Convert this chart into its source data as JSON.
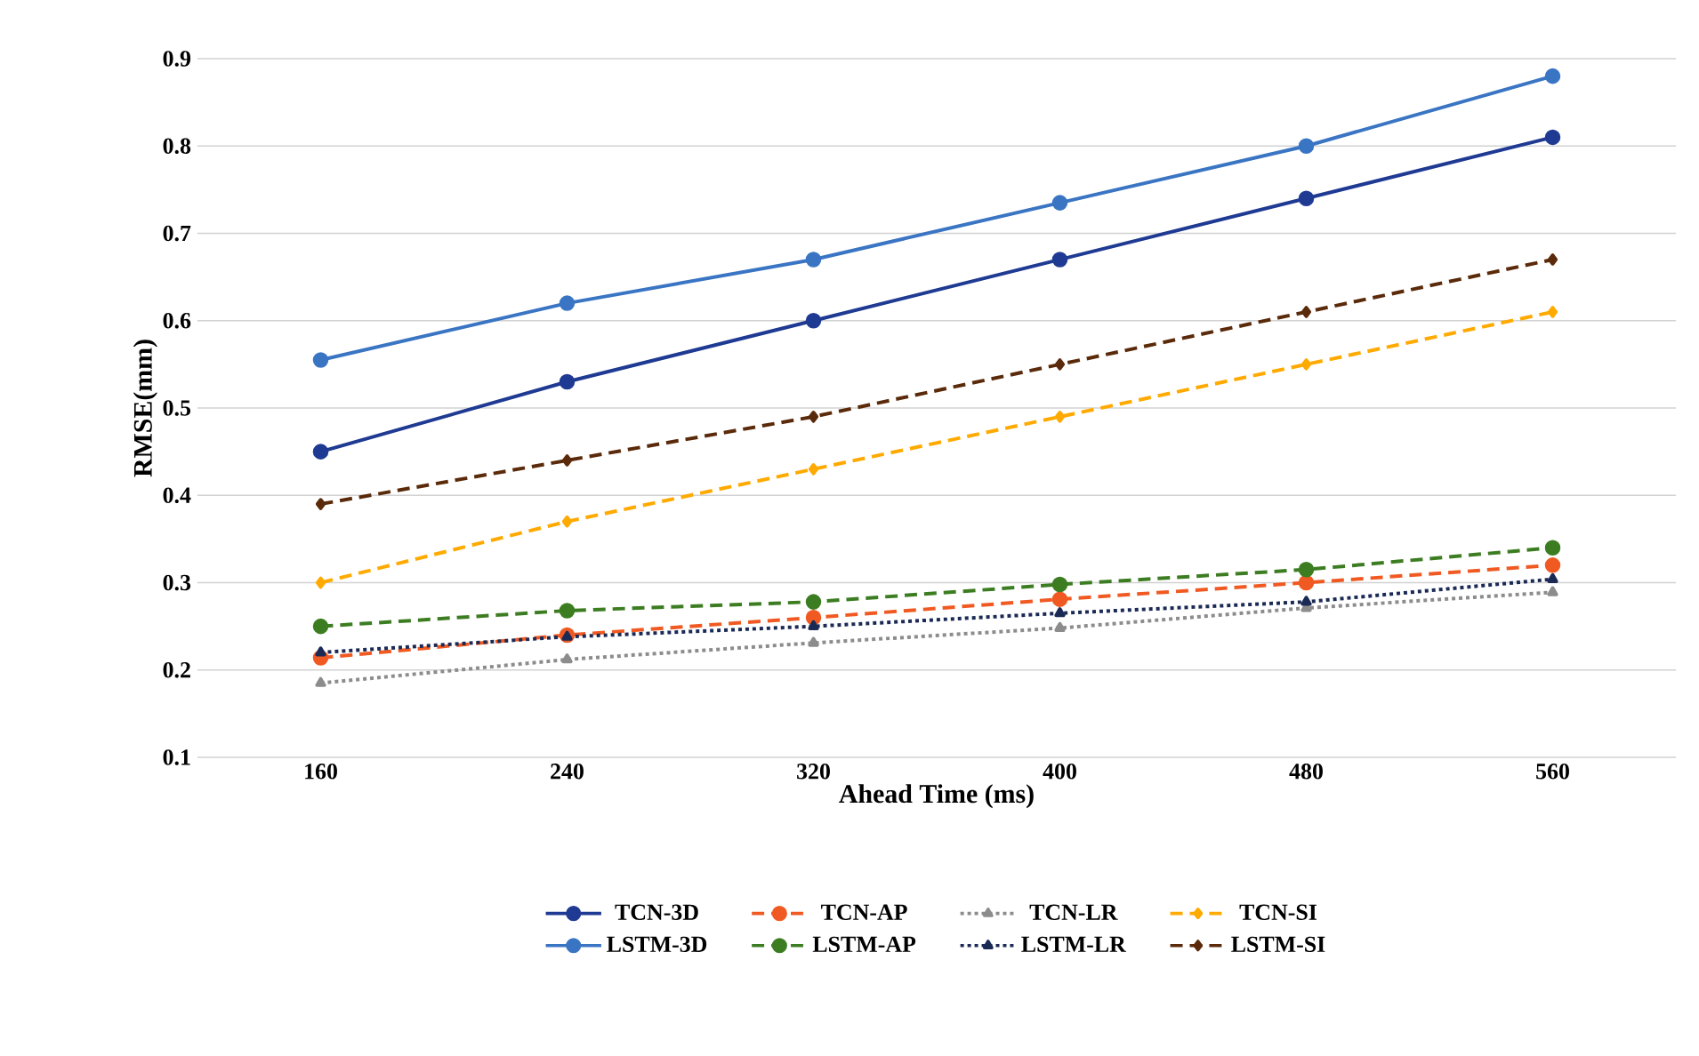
{
  "chart_data": {
    "type": "line",
    "xlabel": "Ahead Time (ms)",
    "ylabel": "RMSE(mm)",
    "categories": [
      "160",
      "240",
      "320",
      "400",
      "480",
      "560"
    ],
    "series": [
      {
        "name": "TCN-3D",
        "color": "#1f3a93",
        "marker": "circle",
        "line_style": "solid",
        "values": [
          0.45,
          0.53,
          0.6,
          0.67,
          0.74,
          0.81
        ]
      },
      {
        "name": "TCN-AP",
        "color": "#f05a22",
        "marker": "circle",
        "line_style": "dashed",
        "values": [
          0.214,
          0.24,
          0.26,
          0.281,
          0.3,
          0.32
        ]
      },
      {
        "name": "TCN-LR",
        "color": "#8c8c8c",
        "marker": "triangle",
        "line_style": "dotted",
        "values": [
          0.185,
          0.212,
          0.231,
          0.248,
          0.271,
          0.289
        ]
      },
      {
        "name": "TCN-SI",
        "color": "#ffaa00",
        "marker": "diamond",
        "line_style": "dashed",
        "values": [
          0.3,
          0.37,
          0.43,
          0.49,
          0.55,
          0.61
        ]
      },
      {
        "name": "LSTM-3D",
        "color": "#3a75c4",
        "marker": "circle",
        "line_style": "solid",
        "values": [
          0.555,
          0.62,
          0.67,
          0.735,
          0.8,
          0.88
        ]
      },
      {
        "name": "LSTM-AP",
        "color": "#3c7d22",
        "marker": "circle",
        "line_style": "dashed",
        "values": [
          0.25,
          0.268,
          0.278,
          0.298,
          0.315,
          0.34
        ]
      },
      {
        "name": "LSTM-LR",
        "color": "#1a2a55",
        "marker": "triangle",
        "line_style": "dotted",
        "values": [
          0.22,
          0.238,
          0.25,
          0.265,
          0.278,
          0.304
        ]
      },
      {
        "name": "LSTM-SI",
        "color": "#5a2a0a",
        "marker": "diamond",
        "line_style": "dashed",
        "values": [
          0.39,
          0.44,
          0.49,
          0.55,
          0.61,
          0.67
        ]
      }
    ],
    "ylim": [
      0.1,
      0.9
    ],
    "yticks": [
      0.1,
      0.2,
      0.3,
      0.4,
      0.5,
      0.6,
      0.7,
      0.8,
      0.9
    ],
    "grid": "y",
    "legend": "bottom"
  }
}
